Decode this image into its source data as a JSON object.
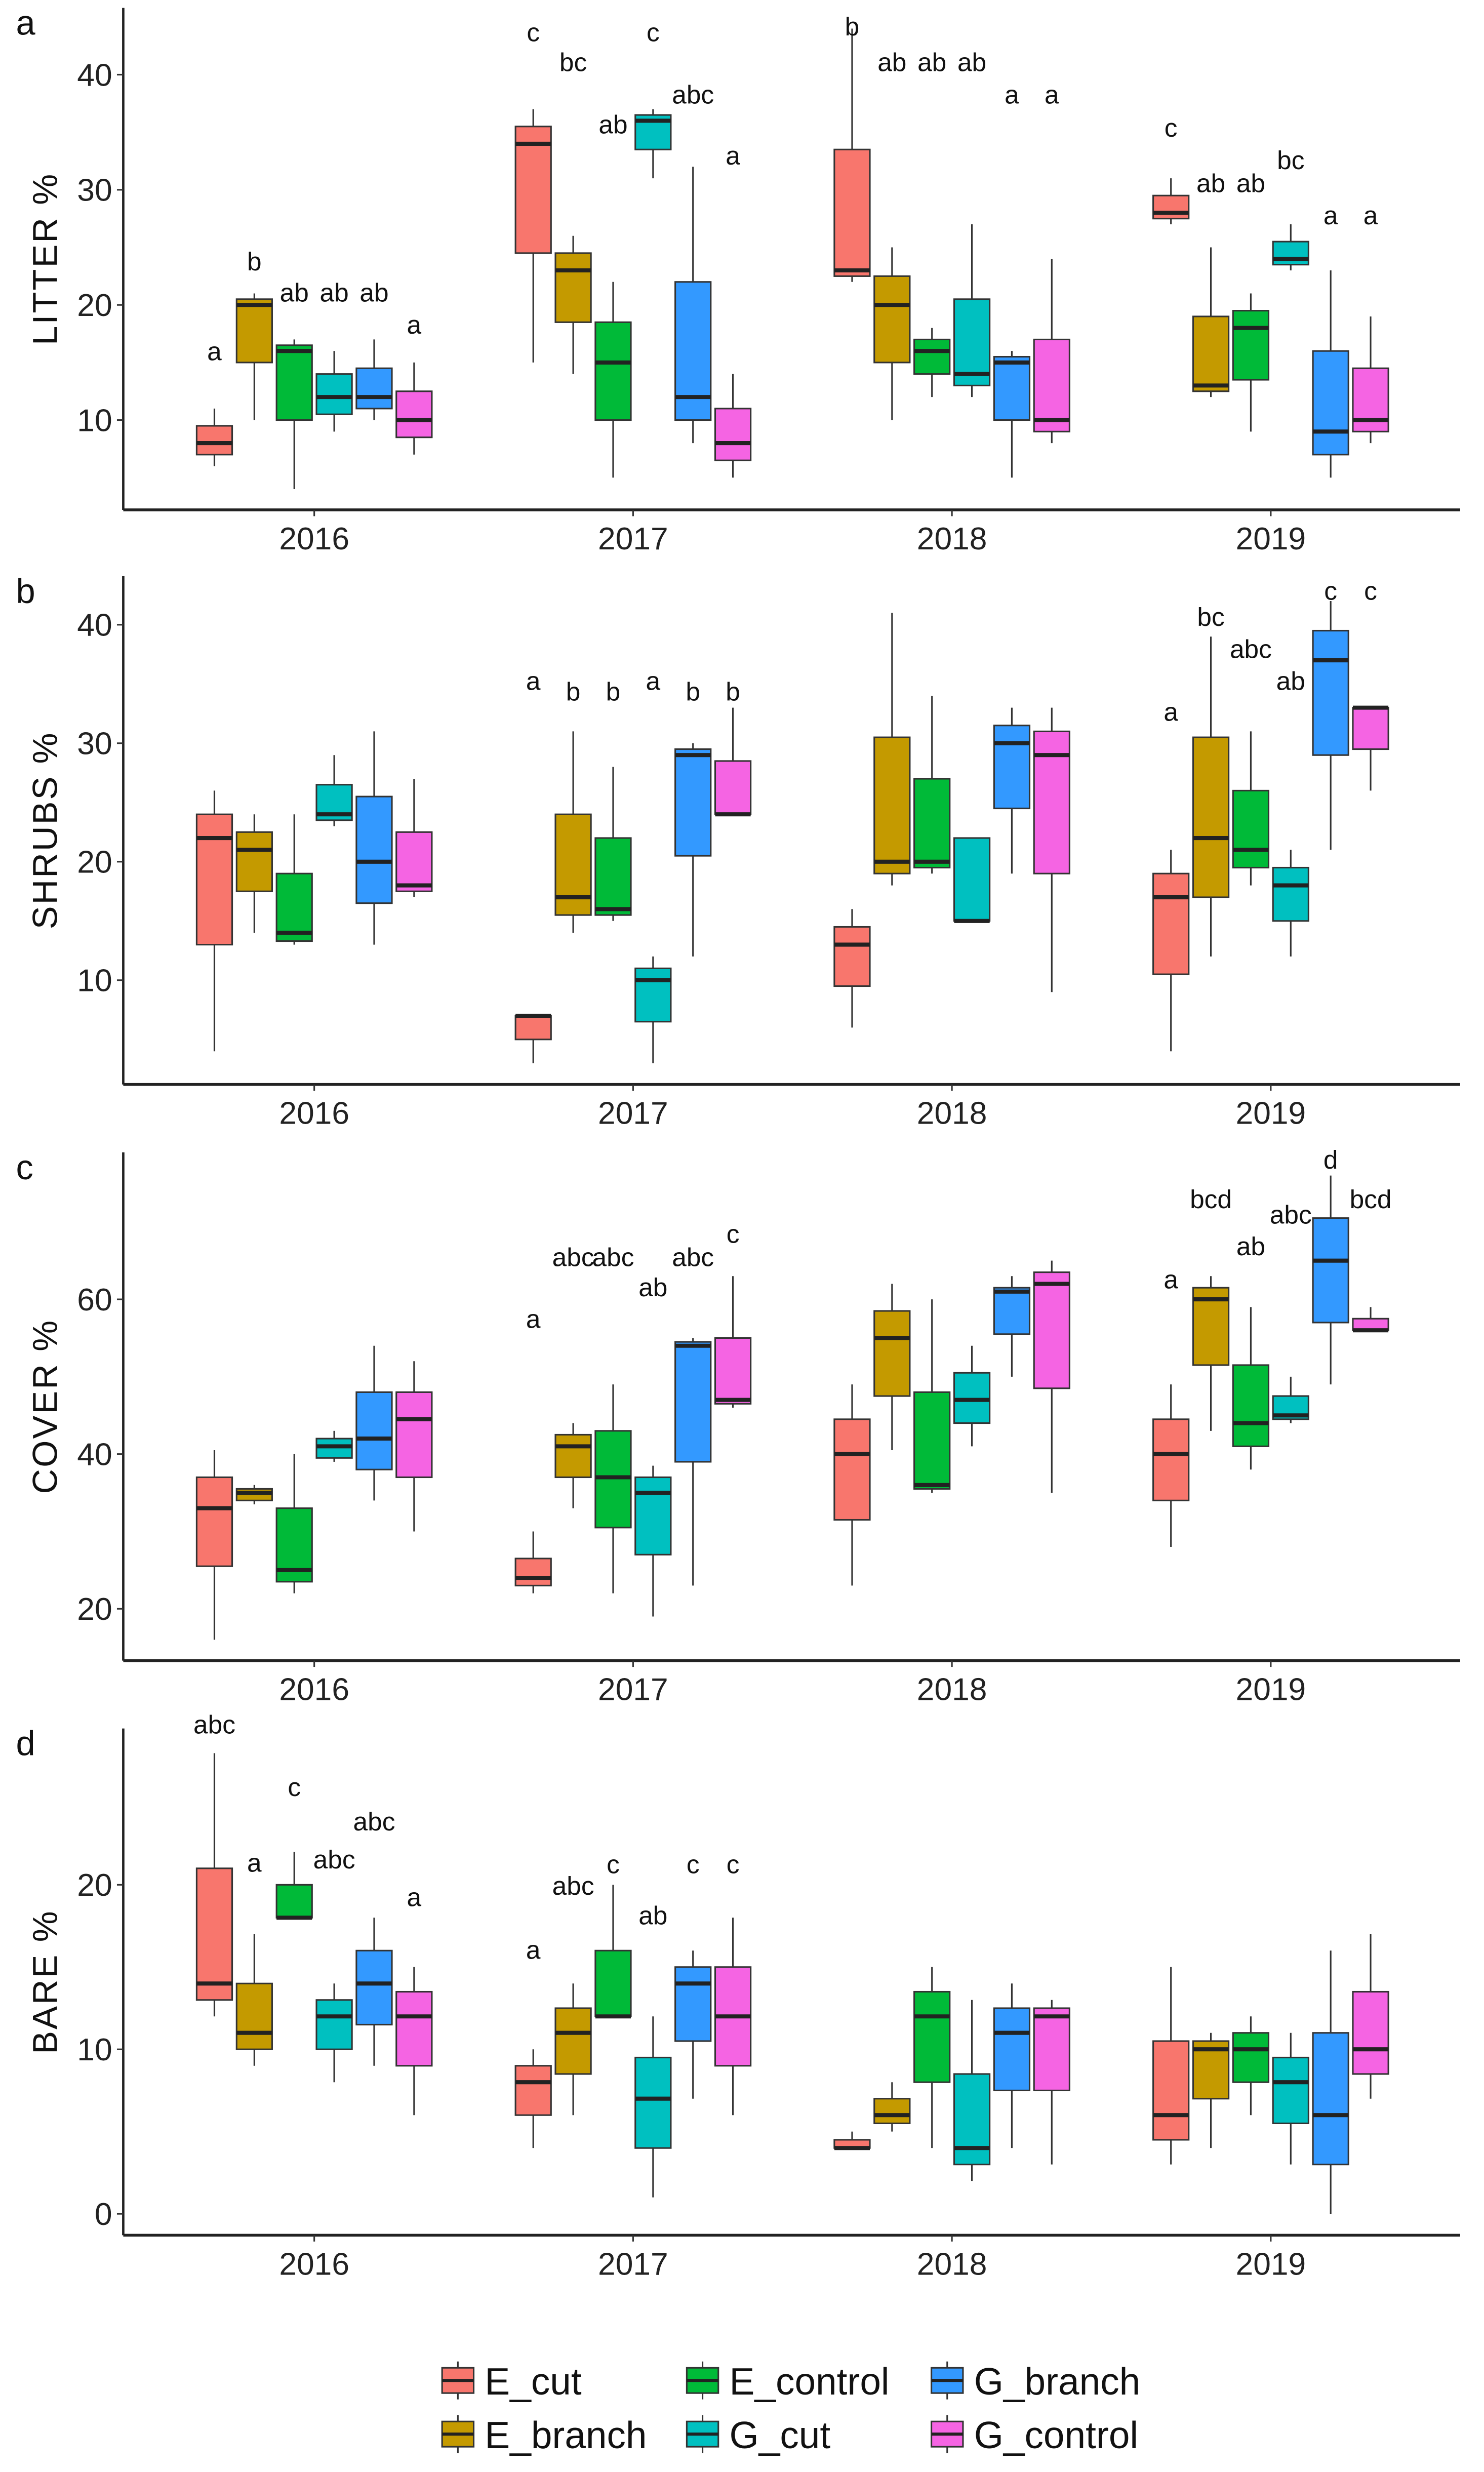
{
  "chart_data": {
    "type": "box",
    "years": [
      "2016",
      "2017",
      "2018",
      "2019"
    ],
    "groups": [
      "E_cut",
      "E_branch",
      "E_control",
      "G_cut",
      "G_branch",
      "G_control"
    ],
    "colors": {
      "E_cut": "#F8766D",
      "E_branch": "#C49A00",
      "E_control": "#00BA38",
      "G_cut": "#00C0C0",
      "G_branch": "#3399FF",
      "G_control": "#F564E3"
    },
    "box_format": "[min, q1, median, q3, max]",
    "legend": {
      "placement": "bottom",
      "entries": [
        "E_cut",
        "E_control",
        "G_branch",
        "E_branch",
        "G_cut",
        "G_control"
      ]
    },
    "panels": [
      {
        "label": "a",
        "ylabel": "LITTER %",
        "ylim": [
          2.2,
          45.8
        ],
        "yticks": [
          "10",
          "20",
          "30",
          "40"
        ],
        "boxes": {
          "2016": [
            [
              6,
              7,
              8,
              9.5,
              11
            ],
            [
              10,
              15,
              20,
              20.5,
              21
            ],
            [
              4,
              10,
              16,
              16.5,
              17
            ],
            [
              9,
              10.5,
              12,
              14,
              16
            ],
            [
              10,
              11,
              12,
              14.5,
              17
            ],
            [
              7,
              8.5,
              10,
              12.5,
              15
            ]
          ],
          "2017": [
            [
              15,
              24.5,
              34,
              35.5,
              37
            ],
            [
              14,
              18.5,
              23,
              24.5,
              26
            ],
            [
              5,
              10,
              15,
              18.5,
              22
            ],
            [
              31,
              33.5,
              36,
              36.5,
              37
            ],
            [
              8,
              10,
              12,
              22,
              32
            ],
            [
              5,
              6.5,
              8,
              11,
              14
            ]
          ],
          "2018": [
            [
              22,
              22.5,
              23,
              33.5,
              44
            ],
            [
              10,
              15,
              20,
              22.5,
              25
            ],
            [
              12,
              14,
              16,
              17,
              18
            ],
            [
              12,
              13,
              14,
              20.5,
              27
            ],
            [
              5,
              10,
              15,
              15.5,
              16
            ],
            [
              8,
              9,
              10,
              17,
              24
            ]
          ],
          "2019": [
            [
              27,
              27.5,
              28,
              29.5,
              31
            ],
            [
              12,
              12.5,
              13,
              19,
              25
            ],
            [
              9,
              13.5,
              18,
              19.5,
              21
            ],
            [
              23,
              23.5,
              24,
              25.5,
              27
            ],
            [
              5,
              7,
              9,
              16,
              23
            ],
            [
              8,
              9,
              10,
              14.5,
              19
            ]
          ]
        },
        "letters": {
          "2016": [
            [
              "a",
              15.2
            ],
            [
              "b",
              23
            ],
            [
              "ab",
              20.3
            ],
            [
              "ab",
              20.3
            ],
            [
              "ab",
              20.3
            ],
            [
              "a",
              17.5
            ]
          ],
          "2017": [
            [
              "c",
              42.9
            ],
            [
              "bc",
              40.3
            ],
            [
              "ab",
              34.9
            ],
            [
              "c",
              42.9
            ],
            [
              "abc",
              37.5
            ],
            [
              "a",
              32.2
            ]
          ],
          "2018": [
            [
              "b",
              43.4
            ],
            [
              "ab",
              40.3
            ],
            [
              "ab",
              40.3
            ],
            [
              "ab",
              40.3
            ],
            [
              "a",
              37.5
            ],
            [
              "a",
              37.5
            ]
          ],
          "2019": [
            [
              "c",
              34.6
            ],
            [
              "ab",
              29.8
            ],
            [
              "ab",
              29.8
            ],
            [
              "bc",
              31.8
            ],
            [
              "a",
              27
            ],
            [
              "a",
              27
            ]
          ]
        }
      },
      {
        "label": "b",
        "ylabel": "SHRUBS %",
        "ylim": [
          1.2,
          44.1
        ],
        "yticks": [
          "10",
          "20",
          "30",
          "40"
        ],
        "boxes": {
          "2016": [
            [
              4,
              13,
              22,
              24,
              26
            ],
            [
              14,
              17.5,
              21,
              22.5,
              24
            ],
            [
              13,
              13.3,
              14,
              19,
              24
            ],
            [
              23,
              23.5,
              24,
              26.5,
              29
            ],
            [
              13,
              16.5,
              20,
              25.5,
              31
            ],
            [
              17,
              17.5,
              18,
              22.5,
              27
            ]
          ],
          "2017": [
            [
              3,
              5,
              7,
              7,
              7
            ],
            [
              14,
              15.5,
              17,
              24,
              31
            ],
            [
              15,
              15.5,
              16,
              22,
              28
            ],
            [
              3,
              6.5,
              10,
              11,
              12
            ],
            [
              12,
              20.5,
              29,
              29.5,
              30
            ],
            [
              24,
              24,
              24,
              28.5,
              33
            ]
          ],
          "2018": [
            [
              6,
              9.5,
              13,
              14.5,
              16
            ],
            [
              18,
              19,
              20,
              30.5,
              41
            ],
            [
              19,
              19.5,
              20,
              27,
              34
            ],
            [
              15,
              15,
              15,
              22,
              22
            ],
            [
              19,
              24.5,
              30,
              31.5,
              33
            ],
            [
              9,
              19,
              29,
              31,
              33
            ]
          ],
          "2019": [
            [
              4,
              10.5,
              17,
              19,
              21
            ],
            [
              12,
              17,
              22,
              30.5,
              39
            ],
            [
              18,
              19.5,
              21,
              26,
              31
            ],
            [
              12,
              15,
              18,
              19.5,
              21
            ],
            [
              21,
              29,
              37,
              39.5,
              42
            ],
            [
              26,
              29.5,
              33,
              33,
              33
            ]
          ]
        },
        "letters": {
          "2016": [],
          "2017": [
            [
              "a",
              34.5
            ],
            [
              "b",
              33.6
            ],
            [
              "b",
              33.6
            ],
            [
              "a",
              34.5
            ],
            [
              "b",
              33.6
            ],
            [
              "b",
              33.6
            ]
          ],
          "2018": [],
          "2019": [
            [
              "a",
              31.9
            ],
            [
              "bc",
              39.9
            ],
            [
              "abc",
              37.2
            ],
            [
              "ab",
              34.5
            ],
            [
              "c",
              42.1
            ],
            [
              "c",
              42.1
            ]
          ]
        }
      },
      {
        "label": "c",
        "ylabel": "COVER %",
        "ylim": [
          13.3,
          79
        ],
        "yticks": [
          "20",
          "40",
          "60"
        ],
        "boxes": {
          "2016": [
            [
              16,
              25.5,
              33,
              37,
              40.5
            ],
            [
              33.5,
              34,
              35,
              35.5,
              36
            ],
            [
              22,
              23.5,
              25,
              33,
              40
            ],
            [
              39,
              39.5,
              41,
              42,
              43
            ],
            [
              34,
              38,
              42,
              48,
              54
            ],
            [
              30,
              37,
              44.5,
              48,
              52
            ]
          ],
          "2017": [
            [
              22,
              23,
              24,
              26.5,
              30
            ],
            [
              33,
              37,
              41,
              42.5,
              44
            ],
            [
              22,
              30.5,
              37,
              43,
              49
            ],
            [
              19,
              27,
              35,
              37,
              38.5
            ],
            [
              23,
              39,
              54,
              54.5,
              55
            ],
            [
              46,
              46.5,
              47,
              55,
              63
            ]
          ],
          "2018": [
            [
              23,
              31.5,
              40,
              44.5,
              49
            ],
            [
              40.5,
              47.5,
              55,
              58.5,
              62
            ],
            [
              35,
              35.5,
              36,
              48,
              60
            ],
            [
              41,
              44,
              47,
              50.5,
              54
            ],
            [
              50,
              55.5,
              61,
              61.5,
              63
            ],
            [
              35,
              48.5,
              62,
              63.5,
              65
            ]
          ],
          "2019": [
            [
              28,
              34,
              40,
              44.5,
              49
            ],
            [
              43,
              51.5,
              60,
              61.5,
              63
            ],
            [
              38,
              41,
              44,
              51.5,
              59
            ],
            [
              44,
              44.5,
              45,
              47.5,
              50
            ],
            [
              49,
              57,
              65,
              70.5,
              76
            ],
            [
              56,
              56,
              56,
              57.5,
              59
            ]
          ]
        },
        "letters": {
          "2016": [],
          "2017": [
            [
              "a",
              56.3
            ],
            [
              "abc",
              64.3
            ],
            [
              "abc",
              64.3
            ],
            [
              "ab",
              60.4
            ],
            [
              "abc",
              64.3
            ],
            [
              "c",
              67.3
            ]
          ],
          "2018": [],
          "2019": [
            [
              "a",
              61.4
            ],
            [
              "bcd",
              71.8
            ],
            [
              "ab",
              65.7
            ],
            [
              "abc",
              69.8
            ],
            [
              "d",
              76.9
            ],
            [
              "bcd",
              71.8
            ]
          ]
        }
      },
      {
        "label": "d",
        "ylabel": "BARE %",
        "ylim": [
          -1.3,
          29.5
        ],
        "yticks": [
          "0",
          "10",
          "20"
        ],
        "boxes": {
          "2016": [
            [
              12,
              13,
              14,
              21,
              28
            ],
            [
              9,
              10,
              11,
              14,
              17
            ],
            [
              18,
              18,
              18,
              20,
              22
            ],
            [
              8,
              10,
              12,
              13,
              14
            ],
            [
              9,
              11.5,
              14,
              16,
              18
            ],
            [
              6,
              9,
              12,
              13.5,
              15
            ]
          ],
          "2017": [
            [
              4,
              6,
              8,
              9,
              10
            ],
            [
              6,
              8.5,
              11,
              12.5,
              14
            ],
            [
              12,
              12,
              12,
              16,
              20
            ],
            [
              1,
              4,
              7,
              9.5,
              12
            ],
            [
              7,
              10.5,
              14,
              15,
              16
            ],
            [
              6,
              9,
              12,
              15,
              18
            ]
          ],
          "2018": [
            [
              4,
              4,
              4,
              4.5,
              5
            ],
            [
              5,
              5.5,
              6,
              7,
              8
            ],
            [
              4,
              8,
              12,
              13.5,
              15
            ],
            [
              2,
              3,
              4,
              8.5,
              13
            ],
            [
              4,
              7.5,
              11,
              12.5,
              14
            ],
            [
              3,
              7.5,
              12,
              12.5,
              13
            ]
          ],
          "2019": [
            [
              3,
              4.5,
              6,
              10.5,
              15
            ],
            [
              4,
              7,
              10,
              10.5,
              11
            ],
            [
              6,
              8,
              10,
              11,
              12
            ],
            [
              3,
              5.5,
              8,
              9.5,
              11
            ],
            [
              0,
              3,
              6,
              11,
              16
            ],
            [
              7,
              8.5,
              10,
              13.5,
              17
            ]
          ]
        },
        "letters": {
          "2016": [
            [
              "abc",
              29.2
            ],
            [
              "a",
              20.8
            ],
            [
              "c",
              25.4
            ],
            [
              "abc",
              21
            ],
            [
              "abc",
              23.3
            ],
            [
              "a",
              18.7
            ]
          ],
          "2017": [
            [
              "a",
              15.5
            ],
            [
              "abc",
              19.4
            ],
            [
              "c",
              20.7
            ],
            [
              "ab",
              17.6
            ],
            [
              "c",
              20.7
            ],
            [
              "c",
              20.7
            ]
          ],
          "2018": [],
          "2019": []
        }
      }
    ]
  }
}
